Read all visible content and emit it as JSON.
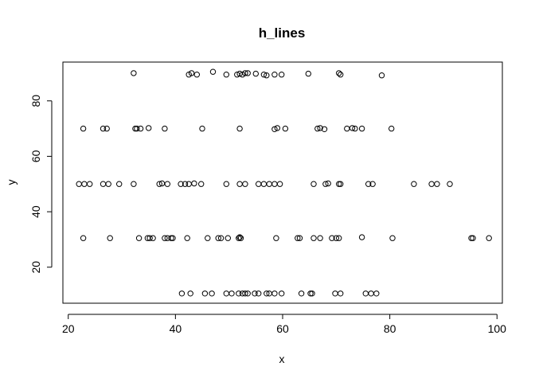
{
  "chart_data": {
    "type": "scatter",
    "title": "h_lines",
    "xlabel": "x",
    "ylabel": "y",
    "xlim": [
      19.0,
      101.0
    ],
    "ylim": [
      7.0,
      94.0
    ],
    "x_ticks": [
      20,
      40,
      60,
      80,
      100
    ],
    "y_ticks": [
      20,
      40,
      60,
      80
    ],
    "grid": false,
    "legend": "none",
    "series": [
      {
        "points": [
          [
            32.2,
            90
          ],
          [
            42.5,
            89.5
          ],
          [
            43.0,
            90
          ],
          [
            44.0,
            89.5
          ],
          [
            47.0,
            90.5
          ],
          [
            49.5,
            89.5
          ],
          [
            51.5,
            89.5
          ],
          [
            52.0,
            89.8
          ],
          [
            52.5,
            89.5
          ],
          [
            53.0,
            90
          ],
          [
            53.5,
            90
          ],
          [
            55.0,
            89.8
          ],
          [
            56.5,
            89.5
          ],
          [
            57.0,
            89.2
          ],
          [
            58.5,
            89.5
          ],
          [
            59.8,
            89.5
          ],
          [
            64.8,
            89.8
          ],
          [
            70.5,
            90
          ],
          [
            70.8,
            89.5
          ],
          [
            78.5,
            89.2
          ],
          [
            22.8,
            70
          ],
          [
            26.5,
            70
          ],
          [
            27.2,
            70
          ],
          [
            32.5,
            70
          ],
          [
            32.8,
            70
          ],
          [
            33.5,
            70
          ],
          [
            35.0,
            70.2
          ],
          [
            38.0,
            70
          ],
          [
            45.0,
            70
          ],
          [
            52.0,
            70
          ],
          [
            58.5,
            69.8
          ],
          [
            59.0,
            70.2
          ],
          [
            60.5,
            70
          ],
          [
            66.5,
            70
          ],
          [
            67.0,
            70.2
          ],
          [
            67.8,
            69.8
          ],
          [
            72.0,
            70
          ],
          [
            73.0,
            70.2
          ],
          [
            73.5,
            70
          ],
          [
            74.8,
            70
          ],
          [
            80.3,
            70
          ],
          [
            22.0,
            50
          ],
          [
            23.0,
            50
          ],
          [
            24.0,
            50
          ],
          [
            26.5,
            50
          ],
          [
            27.5,
            50
          ],
          [
            29.5,
            50
          ],
          [
            32.2,
            50
          ],
          [
            37.0,
            50
          ],
          [
            37.5,
            50.2
          ],
          [
            38.5,
            50
          ],
          [
            41.0,
            50
          ],
          [
            41.8,
            50
          ],
          [
            42.5,
            50
          ],
          [
            43.5,
            50.2
          ],
          [
            44.8,
            50
          ],
          [
            49.5,
            50
          ],
          [
            52.0,
            50
          ],
          [
            53.0,
            50
          ],
          [
            55.5,
            50
          ],
          [
            56.5,
            50
          ],
          [
            57.5,
            50
          ],
          [
            58.5,
            50
          ],
          [
            59.5,
            50
          ],
          [
            65.8,
            50
          ],
          [
            68.0,
            50
          ],
          [
            68.5,
            50.2
          ],
          [
            70.5,
            50
          ],
          [
            70.8,
            50
          ],
          [
            76.0,
            50
          ],
          [
            76.8,
            50
          ],
          [
            84.5,
            50
          ],
          [
            87.8,
            50
          ],
          [
            88.8,
            50
          ],
          [
            91.2,
            50
          ],
          [
            22.8,
            30.5
          ],
          [
            27.8,
            30.5
          ],
          [
            33.2,
            30.5
          ],
          [
            34.8,
            30.5
          ],
          [
            35.2,
            30.5
          ],
          [
            35.8,
            30.5
          ],
          [
            38.0,
            30.5
          ],
          [
            38.5,
            30.5
          ],
          [
            39.2,
            30.5
          ],
          [
            39.5,
            30.5
          ],
          [
            42.2,
            30.5
          ],
          [
            46.0,
            30.5
          ],
          [
            48.0,
            30.5
          ],
          [
            48.5,
            30.5
          ],
          [
            49.8,
            30.5
          ],
          [
            51.8,
            30.5
          ],
          [
            52.0,
            30.8
          ],
          [
            52.2,
            30.5
          ],
          [
            58.8,
            30.5
          ],
          [
            62.8,
            30.5
          ],
          [
            63.2,
            30.5
          ],
          [
            65.8,
            30.5
          ],
          [
            67.0,
            30.5
          ],
          [
            69.2,
            30.5
          ],
          [
            70.0,
            30.5
          ],
          [
            70.5,
            30.5
          ],
          [
            74.8,
            30.8
          ],
          [
            80.5,
            30.5
          ],
          [
            95.2,
            30.5
          ],
          [
            95.5,
            30.5
          ],
          [
            98.5,
            30.5
          ],
          [
            41.2,
            10.5
          ],
          [
            42.8,
            10.5
          ],
          [
            45.5,
            10.5
          ],
          [
            46.8,
            10.5
          ],
          [
            49.5,
            10.5
          ],
          [
            50.5,
            10.5
          ],
          [
            51.8,
            10.5
          ],
          [
            52.5,
            10.5
          ],
          [
            53.0,
            10.5
          ],
          [
            53.5,
            10.5
          ],
          [
            54.8,
            10.5
          ],
          [
            55.5,
            10.5
          ],
          [
            57.0,
            10.5
          ],
          [
            57.5,
            10.5
          ],
          [
            58.5,
            10.5
          ],
          [
            59.8,
            10.5
          ],
          [
            63.5,
            10.5
          ],
          [
            65.2,
            10.5
          ],
          [
            65.5,
            10.5
          ],
          [
            69.8,
            10.5
          ],
          [
            70.8,
            10.5
          ],
          [
            75.5,
            10.5
          ],
          [
            76.5,
            10.5
          ],
          [
            77.5,
            10.5
          ]
        ]
      }
    ]
  }
}
